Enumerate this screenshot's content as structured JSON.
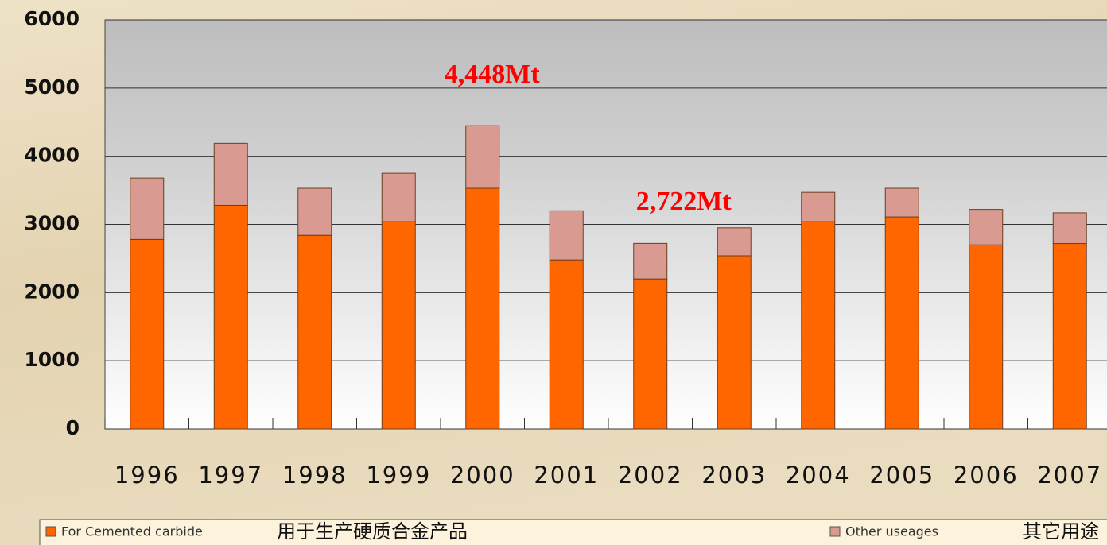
{
  "chart_data": {
    "type": "stacked_bar",
    "categories": [
      "1996",
      "1997",
      "1998",
      "1999",
      "2000",
      "2001",
      "2002",
      "2003",
      "2004",
      "2005",
      "2006",
      "2007"
    ],
    "series": [
      {
        "name": "For Cemented carbide",
        "label_zh": "用于生产硬质合金产品",
        "color": "#ff6600",
        "values": [
          2780,
          3280,
          2840,
          3040,
          3530,
          2480,
          2200,
          2540,
          3040,
          3110,
          2700,
          2720
        ]
      },
      {
        "name": "Other useages",
        "label_zh": "其它用途",
        "color": "#d99a91",
        "values": [
          900,
          910,
          690,
          710,
          918,
          720,
          522,
          410,
          430,
          420,
          520,
          450
        ]
      }
    ],
    "annotations": [
      {
        "text": "4,448Mt",
        "category": 4
      },
      {
        "text": "2,722Mt",
        "category": 6
      }
    ],
    "ylim": [
      0,
      6000
    ],
    "yticks": [
      0,
      1000,
      2000,
      3000,
      4000,
      5000,
      6000
    ],
    "grid": true,
    "legend": "bottom"
  }
}
